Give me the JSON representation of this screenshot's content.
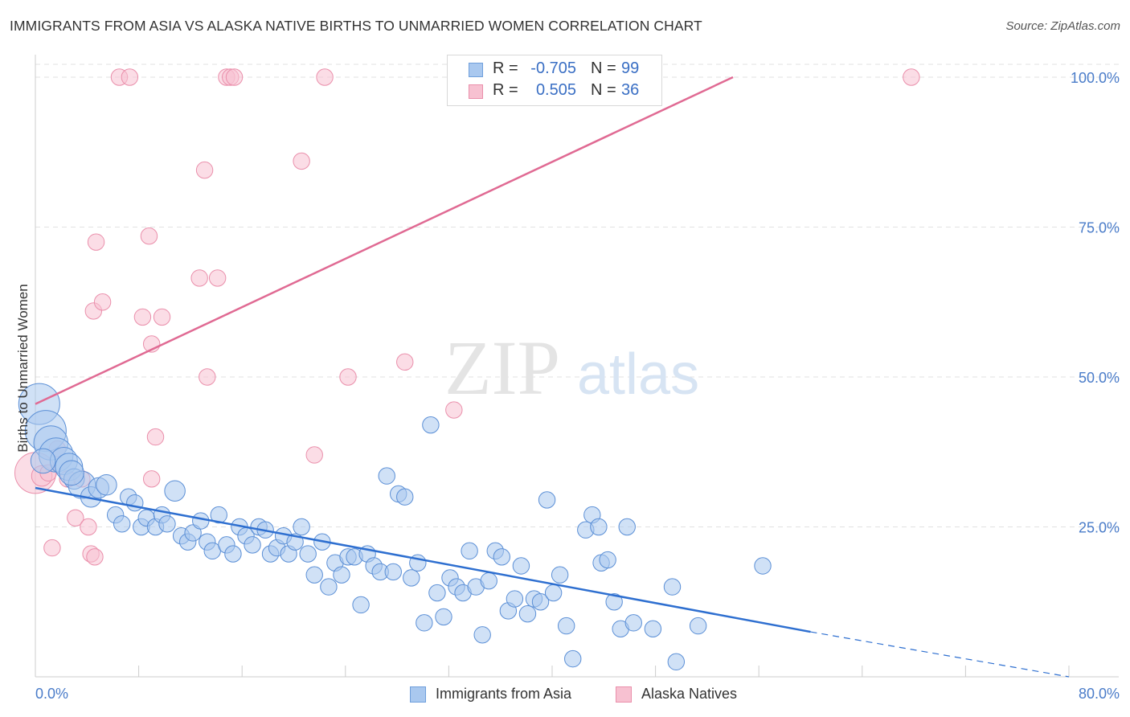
{
  "header": {
    "title": "IMMIGRANTS FROM ASIA VS ALASKA NATIVE BIRTHS TO UNMARRIED WOMEN CORRELATION CHART",
    "source": "Source: ZipAtlas.com"
  },
  "watermark": {
    "zip": "ZIP",
    "atlas": "atlas"
  },
  "stats": [
    {
      "r_label": "R =",
      "r_value": "-0.705",
      "n_label": "N =",
      "n_value": "99",
      "color": "#a9c8ef",
      "border": "#6f9fdc"
    },
    {
      "r_label": "R =",
      "r_value": "0.505",
      "n_label": "N =",
      "n_value": "36",
      "color": "#f7c1d1",
      "border": "#ea8fab"
    }
  ],
  "legend": [
    {
      "label": "Immigrants from Asia",
      "color": "#a9c8ef",
      "border": "#6f9fdc"
    },
    {
      "label": "Alaska Natives",
      "color": "#f7c1d1",
      "border": "#ea8fab"
    }
  ],
  "chart_data": {
    "type": "scatter",
    "title": "IMMIGRANTS FROM ASIA VS ALASKA NATIVE BIRTHS TO UNMARRIED WOMEN CORRELATION CHART",
    "xlabel": "",
    "ylabel": "Births to Unmarried Women",
    "xlim": [
      0,
      80
    ],
    "ylim": [
      0,
      100
    ],
    "x_tick_labels": [
      "0.0%",
      "80.0%"
    ],
    "y_ticks": [
      25,
      50,
      75,
      100
    ],
    "y_tick_labels": [
      "25.0%",
      "50.0%",
      "75.0%",
      "100.0%"
    ],
    "grid": true,
    "legend_position": "bottom-center",
    "colors": {
      "asia_fill": "#a9c8ef",
      "asia_stroke": "#5b8fd6",
      "asia_line": "#2e6fd0",
      "alaska_fill": "#f7c1d1",
      "alaska_stroke": "#ea8fab",
      "alaska_line": "#e06a93"
    },
    "series": [
      {
        "name": "Immigrants from Asia",
        "points": [
          [
            0.3,
            45.5,
            3
          ],
          [
            0.8,
            41,
            3
          ],
          [
            1.2,
            39,
            2.5
          ],
          [
            1.6,
            37,
            2.5
          ],
          [
            2.2,
            36,
            2
          ],
          [
            2.6,
            35,
            2
          ],
          [
            3.0,
            33,
            1.5
          ],
          [
            3.6,
            32,
            2
          ],
          [
            4.3,
            30,
            1.5
          ],
          [
            4.9,
            31.5,
            1.5
          ],
          [
            5.5,
            32,
            1.5
          ],
          [
            6.2,
            27,
            1.2
          ],
          [
            6.7,
            25.5,
            1.2
          ],
          [
            7.2,
            30,
            1.2
          ],
          [
            7.7,
            29,
            1.2
          ],
          [
            8.2,
            25,
            1.2
          ],
          [
            8.6,
            26.5,
            1.2
          ],
          [
            9.3,
            25,
            1.2
          ],
          [
            9.8,
            27,
            1.2
          ],
          [
            10.2,
            25.5,
            1.2
          ],
          [
            10.8,
            31,
            1.5
          ],
          [
            11.3,
            23.5,
            1.2
          ],
          [
            11.8,
            22.5,
            1.2
          ],
          [
            12.2,
            24,
            1.2
          ],
          [
            12.8,
            26,
            1.2
          ],
          [
            13.3,
            22.5,
            1.2
          ],
          [
            13.7,
            21,
            1.2
          ],
          [
            14.2,
            27,
            1.2
          ],
          [
            14.8,
            22,
            1.2
          ],
          [
            15.3,
            20.5,
            1.2
          ],
          [
            15.8,
            25,
            1.2
          ],
          [
            16.3,
            23.5,
            1.2
          ],
          [
            16.8,
            22,
            1.2
          ],
          [
            17.3,
            25,
            1.2
          ],
          [
            17.8,
            24.5,
            1.2
          ],
          [
            18.2,
            20.5,
            1.2
          ],
          [
            18.7,
            21.5,
            1.2
          ],
          [
            19.2,
            23.5,
            1.2
          ],
          [
            19.6,
            20.5,
            1.2
          ],
          [
            20.1,
            22.5,
            1.2
          ],
          [
            20.6,
            25,
            1.2
          ],
          [
            21.1,
            20.5,
            1.2
          ],
          [
            21.6,
            17,
            1.2
          ],
          [
            22.2,
            22.5,
            1.2
          ],
          [
            22.7,
            15,
            1.2
          ],
          [
            23.2,
            19,
            1.2
          ],
          [
            23.7,
            17,
            1.2
          ],
          [
            24.2,
            20,
            1.2
          ],
          [
            24.7,
            20,
            1.2
          ],
          [
            25.2,
            12,
            1.2
          ],
          [
            25.7,
            20.5,
            1.2
          ],
          [
            26.2,
            18.5,
            1.2
          ],
          [
            26.7,
            17.5,
            1.2
          ],
          [
            27.2,
            33.5,
            1.2
          ],
          [
            27.7,
            17.5,
            1.2
          ],
          [
            28.1,
            30.5,
            1.2
          ],
          [
            28.6,
            30,
            1.2
          ],
          [
            29.1,
            16.5,
            1.2
          ],
          [
            29.6,
            19,
            1.2
          ],
          [
            30.1,
            9,
            1.2
          ],
          [
            30.6,
            42,
            1.2
          ],
          [
            31.1,
            14,
            1.2
          ],
          [
            31.6,
            10,
            1.2
          ],
          [
            32.1,
            16.5,
            1.2
          ],
          [
            32.6,
            15,
            1.2
          ],
          [
            33.1,
            14,
            1.2
          ],
          [
            33.6,
            21,
            1.2
          ],
          [
            34.1,
            15,
            1.2
          ],
          [
            34.6,
            7,
            1.2
          ],
          [
            35.1,
            16,
            1.2
          ],
          [
            35.6,
            21,
            1.2
          ],
          [
            36.1,
            20,
            1.2
          ],
          [
            36.6,
            11,
            1.2
          ],
          [
            37.1,
            13,
            1.2
          ],
          [
            37.6,
            18.5,
            1.2
          ],
          [
            38.1,
            10.5,
            1.2
          ],
          [
            38.6,
            13,
            1.2
          ],
          [
            39.1,
            12.5,
            1.2
          ],
          [
            39.6,
            29.5,
            1.2
          ],
          [
            40.1,
            14,
            1.2
          ],
          [
            40.6,
            17,
            1.2
          ],
          [
            41.1,
            8.5,
            1.2
          ],
          [
            41.6,
            3,
            1.2
          ],
          [
            42.6,
            24.5,
            1.2
          ],
          [
            43.1,
            27,
            1.2
          ],
          [
            43.6,
            25,
            1.2
          ],
          [
            43.8,
            19,
            1.2
          ],
          [
            44.3,
            19.5,
            1.2
          ],
          [
            44.8,
            12.5,
            1.2
          ],
          [
            45.3,
            8,
            1.2
          ],
          [
            45.8,
            25,
            1.2
          ],
          [
            46.3,
            9,
            1.2
          ],
          [
            47.8,
            8,
            1.2
          ],
          [
            49.3,
            15,
            1.2
          ],
          [
            49.6,
            2.5,
            1.2
          ],
          [
            51.3,
            8.5,
            1.2
          ],
          [
            56.3,
            18.5,
            1.2
          ],
          [
            0.6,
            36,
            1.8
          ],
          [
            2.8,
            34,
            1.8
          ]
        ],
        "trend": {
          "x": [
            0,
            60
          ],
          "y": [
            31.5,
            7.5
          ]
        },
        "trend_dashed": {
          "x": [
            60,
            80
          ],
          "y": [
            7.5,
            0
          ]
        }
      },
      {
        "name": "Alaska Natives",
        "points": [
          [
            0.0,
            34,
            3
          ],
          [
            0.5,
            33.5,
            1.5
          ],
          [
            1.0,
            34,
            1.2
          ],
          [
            1.7,
            38,
            1.2
          ],
          [
            2.5,
            33,
            1.2
          ],
          [
            3.1,
            26.5,
            1.2
          ],
          [
            3.6,
            33,
            1.2
          ],
          [
            4.1,
            25,
            1.2
          ],
          [
            4.3,
            20.5,
            1.2
          ],
          [
            4.6,
            20,
            1.2
          ],
          [
            1.3,
            21.5,
            1.2
          ],
          [
            4.5,
            61,
            1.2
          ],
          [
            4.7,
            72.5,
            1.2
          ],
          [
            5.2,
            62.5,
            1.2
          ],
          [
            6.5,
            100,
            1.2
          ],
          [
            7.3,
            100,
            1.2
          ],
          [
            8.3,
            60,
            1.2
          ],
          [
            8.8,
            73.5,
            1.2
          ],
          [
            9.0,
            55.5,
            1.2
          ],
          [
            9.3,
            40,
            1.2
          ],
          [
            9.8,
            60,
            1.2
          ],
          [
            12.7,
            66.5,
            1.2
          ],
          [
            13.1,
            84.5,
            1.2
          ],
          [
            13.3,
            50,
            1.2
          ],
          [
            14.1,
            66.5,
            1.2
          ],
          [
            14.8,
            100,
            1.2
          ],
          [
            15.1,
            100,
            1.2
          ],
          [
            15.4,
            100,
            1.2
          ],
          [
            20.6,
            86,
            1.2
          ],
          [
            21.6,
            37,
            1.2
          ],
          [
            22.4,
            100,
            1.2
          ],
          [
            24.2,
            50,
            1.2
          ],
          [
            28.6,
            52.5,
            1.2
          ],
          [
            32.4,
            44.5,
            1.2
          ],
          [
            67.8,
            100,
            1.2
          ],
          [
            9.0,
            33,
            1.2
          ]
        ],
        "trend": {
          "x": [
            0,
            54
          ],
          "y": [
            45.5,
            100
          ]
        }
      }
    ]
  }
}
